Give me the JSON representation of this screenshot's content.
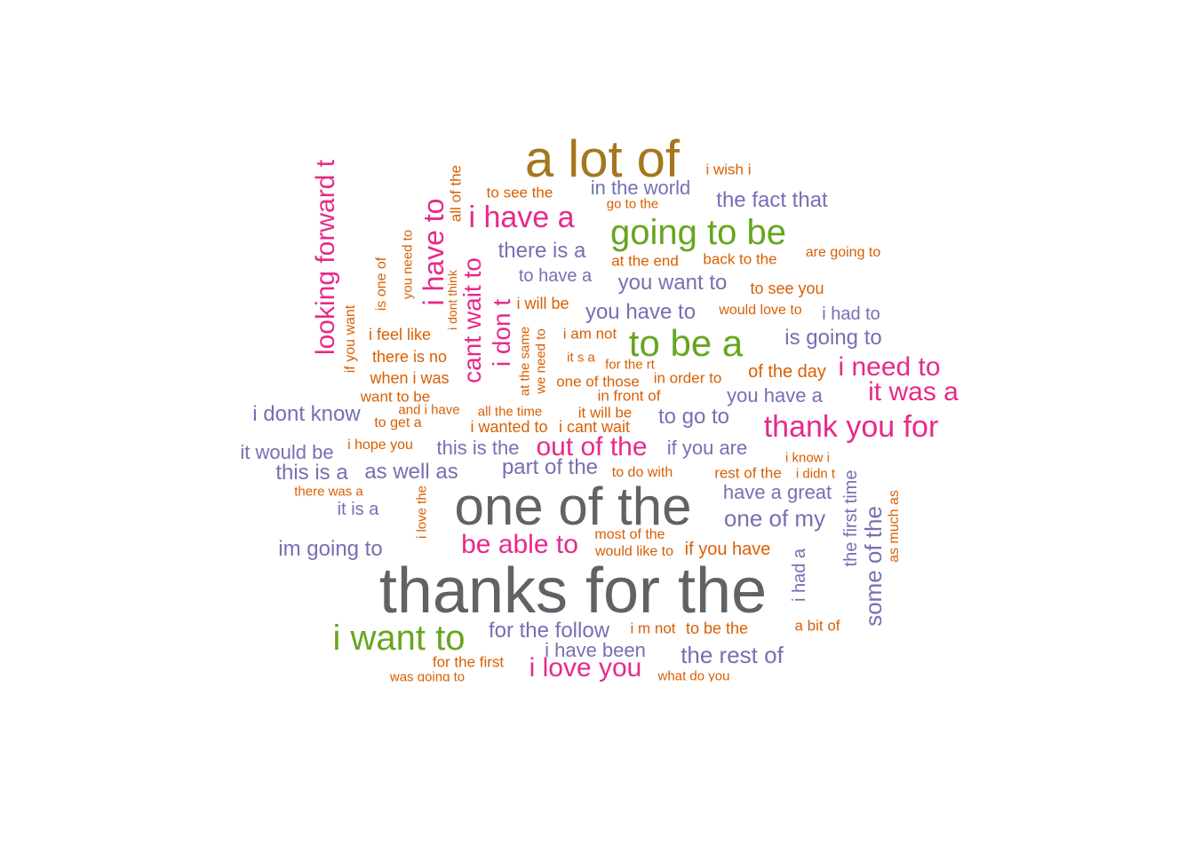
{
  "colors": {
    "gray": "#5f6366",
    "brown": "#a6761d",
    "green": "#66a61e",
    "magenta": "#e7298a",
    "purple": "#7570b3",
    "orange": "#d95f02"
  },
  "phrases": [
    "thanks for the",
    "one of the",
    "a lot of",
    "going to be",
    "to be a",
    "i want to",
    "i have a",
    "i have to",
    "looking forward t",
    "cant wait to",
    "i don t",
    "i need to",
    "it was a",
    "thank you for",
    "out of the",
    "be able to",
    "i love you",
    "in the world",
    "the fact that",
    "there is a",
    "you want to",
    "you have to",
    "is going to",
    "you have a",
    "i dont know",
    "it would be",
    "this is a",
    "as well as",
    "this is the",
    "part of the",
    "if you are",
    "have a great",
    "one of my",
    "it is a",
    "im going to",
    "for the follow",
    "i have been",
    "the rest of",
    "some of the",
    "the first time",
    "to have a",
    "to go to",
    "i had to",
    "i had a",
    "i wish i",
    "to see the",
    "go to the",
    "all of the",
    "at the end",
    "back to the",
    "are going to",
    "to see you",
    "would love to",
    "i will be",
    "i am not",
    "i feel like",
    "there is no",
    "when i was",
    "want to be",
    "and i have",
    "all the time",
    "it will be",
    "i wanted to",
    "i cant wait",
    "to get a",
    "i hope you",
    "to do with",
    "rest of the",
    "i know i",
    "i didn t",
    "there was a",
    "i love the",
    "most of the",
    "would like to",
    "if you have",
    "a bit of",
    "i m not",
    "to be the",
    "for the first",
    "was going to",
    "what do you",
    "it s a",
    "for the rt",
    "in order to",
    "of the day",
    "one of those",
    "in front of",
    "is one of",
    "you need to",
    "if you want",
    "i dont think",
    "at the same",
    "we need to",
    "as much as"
  ]
}
